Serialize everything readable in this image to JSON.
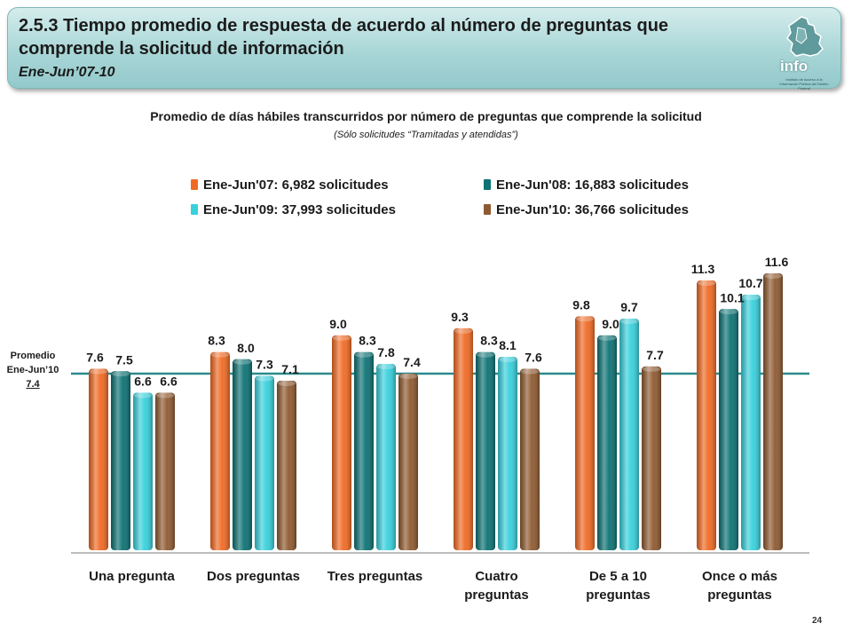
{
  "header": {
    "title": "2.5.3 Tiempo promedio de respuesta de acuerdo al número de preguntas que comprende la solicitud de información",
    "period": "Ene-Jun’07-10",
    "logo_text": "info",
    "logo_small": "Instituto de Acceso a la Información Pública del Distrito Federal"
  },
  "subtitle": "Promedio de días hábiles transcurridos por número de preguntas que comprende la solicitud",
  "subnote": "(Sólo solicitudes “Tramitadas y atendidas”)",
  "average": {
    "line1": "Promedio",
    "line2": "Ene-Jun’10",
    "value_text": "7.4",
    "value": 7.4,
    "color": "#2a8a8c"
  },
  "page_number": "24",
  "chart_data": {
    "type": "bar",
    "title": "Promedio de días hábiles transcurridos por número de preguntas que comprende la solicitud",
    "categories": [
      [
        "Una pregunta"
      ],
      [
        "Dos preguntas"
      ],
      [
        "Tres preguntas"
      ],
      [
        "Cuatro",
        "preguntas"
      ],
      [
        "De 5 a 10",
        "preguntas"
      ],
      [
        "Once o más",
        "preguntas"
      ]
    ],
    "series": [
      {
        "name": "Ene-Jun'07: 6,982 solicitudes",
        "color": "#f06a24",
        "values": [
          7.6,
          8.3,
          9.0,
          9.3,
          9.8,
          11.3
        ]
      },
      {
        "name": "Ene-Jun'08: 16,883 solicitudes",
        "color": "#0d7274",
        "values": [
          7.5,
          8.0,
          8.3,
          8.3,
          9.0,
          10.1
        ]
      },
      {
        "name": "Ene-Jun'09: 37,993 solicitudes",
        "color": "#38d0dc",
        "values": [
          6.6,
          7.3,
          7.8,
          8.1,
          9.7,
          10.7
        ]
      },
      {
        "name": "Ene-Jun'10: 36,766 solicitudes",
        "color": "#8f5a30",
        "values": [
          6.6,
          7.1,
          7.4,
          7.6,
          7.7,
          11.6
        ]
      }
    ],
    "value_labels": [
      [
        "7.6",
        "8.3",
        "9.0",
        "9.3",
        "9.8",
        "11.3"
      ],
      [
        "7.5",
        "8.0",
        "8.3",
        "8.3",
        "9.0",
        "10.1"
      ],
      [
        "6.6",
        "7.3",
        "7.8",
        "8.1",
        "9.7",
        "10.7"
      ],
      [
        "6.6",
        "7.1",
        "7.4",
        "7.6",
        "7.7",
        "11.6"
      ]
    ],
    "legend_position": "top",
    "grid": false
  }
}
